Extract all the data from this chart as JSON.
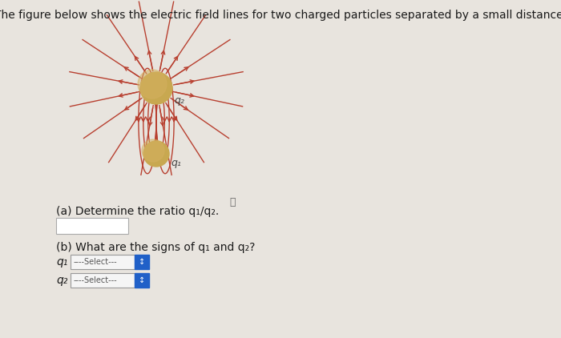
{
  "background_color": "#e8e4de",
  "title_text": "The figure below shows the electric field lines for two charged particles separated by a small distance.",
  "title_fontsize": 10.0,
  "title_color": "#1a1a1a",
  "fig_width": 7.0,
  "fig_height": 4.22,
  "charge_color": "#c8a850",
  "field_line_color": "#b84030",
  "label_q2": "q₂",
  "label_q1": "q₁",
  "label_fontsize": 9,
  "part_a_text": "(a) Determine the ratio q₁/q₂.",
  "part_b_text": "(b) What are the signs of q₁ and q₂?",
  "part_fontsize": 10.0,
  "q1_label_text": "q₁",
  "q2_label_text": "q₂",
  "select_text": "----Select---",
  "select_button_color": "#2060c8",
  "answer_box_color": "#ffffff",
  "answer_box_border": "#aaaaaa"
}
